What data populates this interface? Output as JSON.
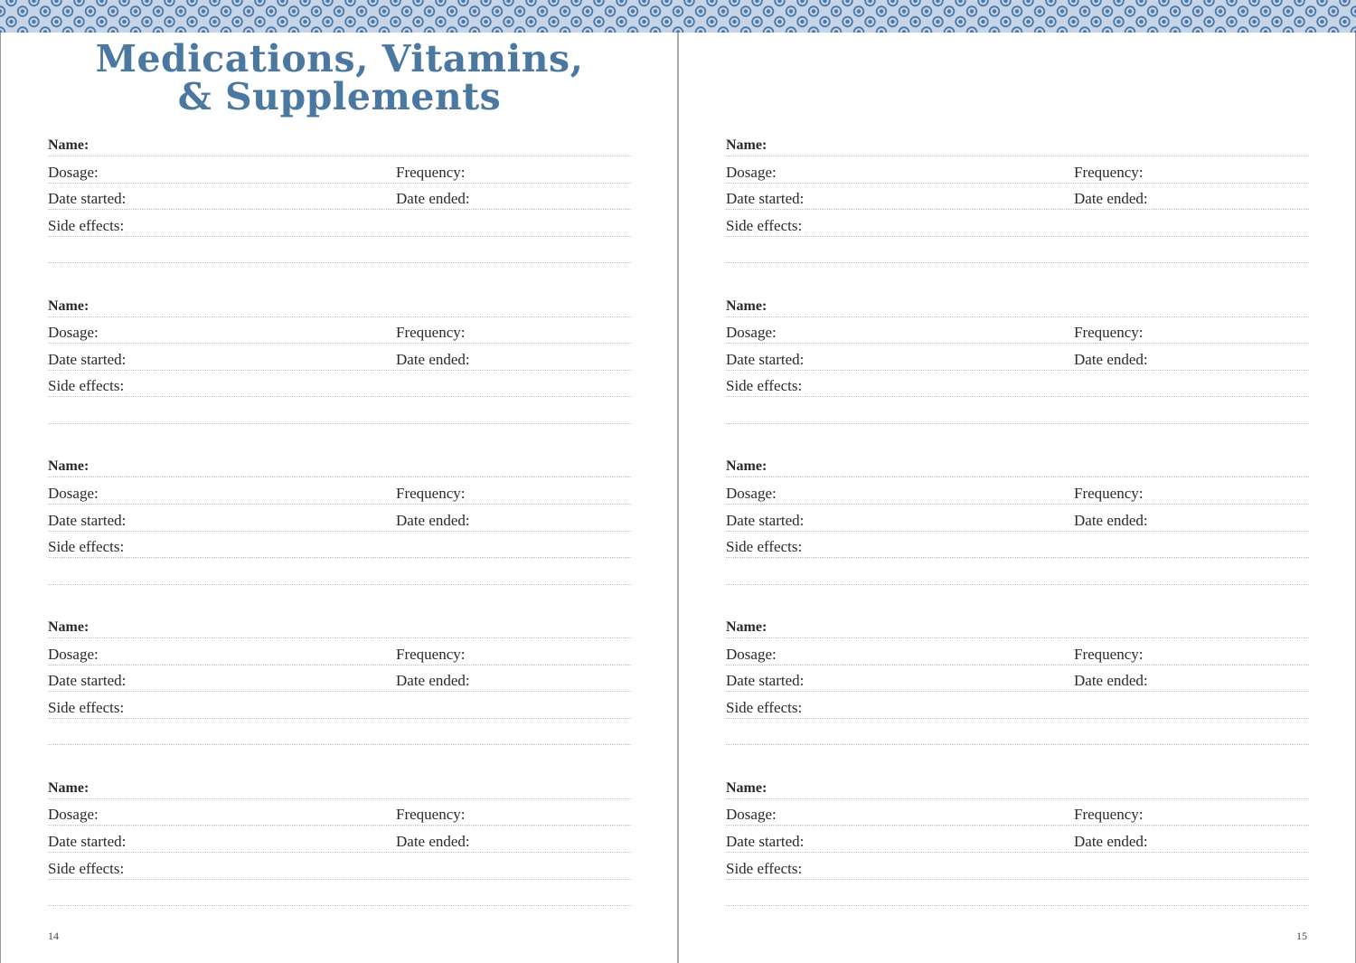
{
  "header_pattern": {
    "icon": "circle-dot-pattern",
    "background": "#c5d4e6",
    "ring": "#4a78a8"
  },
  "title": {
    "line1": "Medications, Vitamins,",
    "line2": "& Supplements",
    "color": "#4a78a0"
  },
  "fields": {
    "name": "Name:",
    "dosage": "Dosage:",
    "frequency": "Frequency:",
    "date_started": "Date started:",
    "date_ended": "Date ended:",
    "side_effects": "Side effects:"
  },
  "pages": [
    {
      "page_number": "14",
      "entry_count": 5
    },
    {
      "page_number": "15",
      "entry_count": 5
    }
  ]
}
